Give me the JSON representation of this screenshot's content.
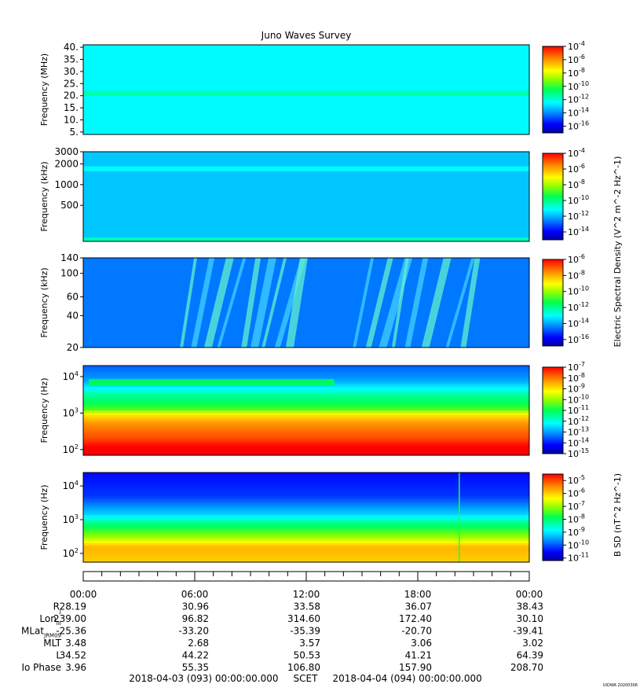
{
  "figure": {
    "title": "Juno Waves Survey",
    "watermark": "UIOWA 20200306"
  },
  "chart_data": [
    {
      "type": "heatmap",
      "panel": 1,
      "ylabel": "Frequency (MHz)",
      "ylim": [
        4,
        41
      ],
      "yticks": [
        "40.",
        "35.",
        "30.",
        "25.",
        "20.",
        "15.",
        "10.",
        "5."
      ],
      "ytick_values": [
        40,
        35,
        30,
        25,
        20,
        15,
        10,
        5
      ],
      "colorbar_ticks": [
        "10^-4",
        "10^-6",
        "10^-8",
        "10^-10",
        "10^-12",
        "10^-14",
        "10^-16"
      ],
      "colorbar_range": [
        -17,
        -4
      ],
      "background_level": -12.5,
      "features": [
        {
          "kind": "band",
          "y": 21,
          "level": -11.5
        }
      ]
    },
    {
      "type": "heatmap",
      "panel": 2,
      "ylabel": "Frequency (kHz)",
      "yscale": "log",
      "ylim": [
        150,
        3000
      ],
      "yticks": [
        "3000",
        "2000",
        "1000",
        "500"
      ],
      "ytick_values": [
        3000,
        2000,
        1000,
        500
      ],
      "colorbar_ticks": [
        "10^-4",
        "10^-6",
        "10^-8",
        "10^-10",
        "10^-12",
        "10^-14"
      ],
      "colorbar_range": [
        -15,
        -4
      ],
      "colorbar_label": "Electric Spectral Density (V^2 m^-2 Hz^-1)",
      "background_level": -11.8,
      "features": [
        {
          "kind": "band",
          "y": 1700,
          "level": -11.2
        },
        {
          "kind": "lowband",
          "y": 170,
          "level": -10.5
        }
      ]
    },
    {
      "type": "heatmap",
      "panel": 3,
      "ylabel": "Frequency (kHz)",
      "yscale": "log",
      "ylim": [
        20,
        140
      ],
      "yticks": [
        "140",
        "100",
        "60",
        "40",
        "20"
      ],
      "ytick_values": [
        140,
        100,
        60,
        40,
        20
      ],
      "colorbar_ticks": [
        "10^-6",
        "10^-8",
        "10^-10",
        "10^-12",
        "10^-14",
        "10^-16"
      ],
      "colorbar_range": [
        -16.8,
        -6
      ],
      "background_level": -14.5,
      "bursts_hours": [
        5.2,
        5.8,
        6.5,
        7.2,
        8.5,
        9.0,
        9.6,
        10.3,
        10.9,
        14.5,
        15.2,
        15.9,
        16.6,
        17.3,
        18.2,
        19.5,
        20.3
      ]
    },
    {
      "type": "heatmap",
      "panel": 4,
      "ylabel": "Frequency (Hz)",
      "yscale": "log",
      "ylim": [
        70,
        20000
      ],
      "yticks": [
        "10^4",
        "10^3",
        "10^2"
      ],
      "ytick_values": [
        10000,
        1000,
        100
      ],
      "colorbar_ticks": [
        "10^-7",
        "10^-8",
        "10^-9",
        "10^-10",
        "10^-11",
        "10^-12",
        "10^-13",
        "10^-14",
        "10^-15"
      ],
      "colorbar_range": [
        -15,
        -7
      ],
      "profile": [
        [
          20000,
          -13.5
        ],
        [
          8000,
          -13.0
        ],
        [
          3000,
          -11.5
        ],
        [
          1200,
          -10.5
        ],
        [
          1000,
          -9.2
        ],
        [
          500,
          -8.2
        ],
        [
          200,
          -7.6
        ],
        [
          120,
          -7.0
        ],
        [
          70,
          -7.0
        ]
      ],
      "features": [
        {
          "kind": "chorus",
          "t0": 0.3,
          "t1": 13.5,
          "y": 7000,
          "level": -11.0
        }
      ]
    },
    {
      "type": "heatmap",
      "panel": 5,
      "ylabel": "Frequency (Hz)",
      "yscale": "log",
      "ylim": [
        55,
        25000
      ],
      "yticks": [
        "10^4",
        "10^3",
        "10^2"
      ],
      "ytick_values": [
        10000,
        1000,
        100
      ],
      "colorbar_ticks": [
        "10^-5",
        "10^-6",
        "10^-7",
        "10^-8",
        "10^-9",
        "10^-10",
        "10^-11"
      ],
      "colorbar_range": [
        -11.2,
        -4.5
      ],
      "colorbar_label": "B SD (nT^2 Hz^-1)",
      "profile": [
        [
          25000,
          -10.5
        ],
        [
          5000,
          -10.2
        ],
        [
          1500,
          -9.2
        ],
        [
          600,
          -7.8
        ],
        [
          300,
          -7.0
        ],
        [
          200,
          -6.2
        ],
        [
          150,
          -5.8
        ],
        [
          55,
          -6.0
        ]
      ],
      "features": [
        {
          "kind": "spike",
          "t": 20.2
        }
      ]
    }
  ],
  "ephemeris": {
    "time_labels": [
      "00:00",
      "06:00",
      "12:00",
      "18:00",
      "00:00"
    ],
    "rows": [
      {
        "label": "R",
        "sub": "J",
        "values": [
          "28.19",
          "30.96",
          "33.58",
          "36.07",
          "38.43"
        ]
      },
      {
        "label": "Lon",
        "sub": "III",
        "values": [
          "239.00",
          "96.82",
          "314.60",
          "172.40",
          "30.10"
        ]
      },
      {
        "label": "MLat",
        "sub": "JRM09",
        "values": [
          "-25.36",
          "-33.20",
          "-35.39",
          "-20.70",
          "-39.41"
        ]
      },
      {
        "label": "MLT",
        "sub": "",
        "values": [
          "3.48",
          "2.68",
          "3.57",
          "3.06",
          "3.02"
        ]
      },
      {
        "label": "L",
        "sub": "",
        "values": [
          "34.52",
          "44.22",
          "50.53",
          "41.21",
          "64.39"
        ]
      },
      {
        "label": "Io Phase",
        "sub": "",
        "values": [
          "3.96",
          "55.35",
          "106.80",
          "157.90",
          "208.70"
        ]
      }
    ],
    "footer": "2018-04-03 (093) 00:00:00.000     SCET     2018-04-04 (094) 00:00:00.000"
  }
}
